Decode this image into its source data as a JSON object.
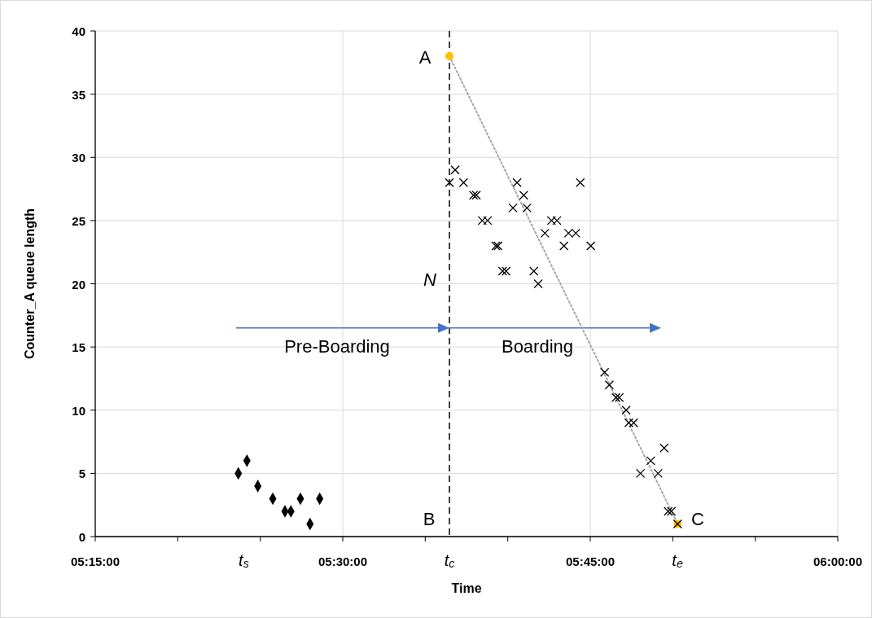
{
  "chart_data": {
    "type": "scatter",
    "xlabel": "Time",
    "ylabel": "Counter_A queue length",
    "xlim": [
      5.25,
      6.0
    ],
    "ylim": [
      0,
      40
    ],
    "xticks": [
      {
        "value": 5.25,
        "label": "05:15:00"
      },
      {
        "value": 5.3333,
        "label": null
      },
      {
        "value": 5.4,
        "label": "t$_{s}$"
      },
      {
        "value": 5.4167,
        "label": null
      },
      {
        "value": 5.5,
        "label": "05:30:00"
      },
      {
        "value": 5.5833,
        "label": null
      },
      {
        "value": 5.6077,
        "label": "t$_{c}$"
      },
      {
        "value": 5.6667,
        "label": null
      },
      {
        "value": 5.75,
        "label": "05:45:00"
      },
      {
        "value": 5.8333,
        "label": null
      },
      {
        "value": 5.838,
        "label": "t$_{e}$"
      },
      {
        "value": 5.9167,
        "label": null
      },
      {
        "value": 6.0,
        "label": "06:00:00"
      }
    ],
    "yticks": [
      0,
      5,
      10,
      15,
      20,
      25,
      30,
      35,
      40
    ],
    "grid": true,
    "ref_lines": [
      {
        "axis": "x",
        "value": 5.6077,
        "color": "#000000",
        "line_style": "dashed"
      }
    ],
    "annotations": [
      "A",
      "B",
      "C",
      "N",
      "Pre-Boarding",
      "Boarding"
    ],
    "series": [
      {
        "type": "line",
        "color": "#a6a6a6",
        "marker": "none",
        "line_style": "dotted",
        "x": [
          5.6077,
          5.8382
        ],
        "values": [
          38,
          1
        ]
      },
      {
        "color": "#ffc000",
        "marker": "circle",
        "x": [
          5.6077,
          5.8382
        ],
        "values": [
          38,
          1
        ]
      },
      {
        "color": "#000000",
        "marker": "diamond",
        "x": [
          5.3945,
          5.4032,
          5.4142,
          5.4293,
          5.4416,
          5.4476,
          5.4572,
          5.4669,
          5.4767
        ],
        "values": [
          5,
          6,
          4,
          3,
          2,
          2,
          3,
          1,
          3
        ]
      },
      {
        "color": "#000000",
        "marker": "cross",
        "x": [
          5.6077,
          5.6135,
          5.622,
          5.6321,
          5.6349,
          5.6409,
          5.6463,
          5.6546,
          5.6568,
          5.6614,
          5.665,
          5.6719,
          5.676,
          5.6828,
          5.6861,
          5.693,
          5.6974,
          5.7042,
          5.7108,
          5.7163,
          5.7234,
          5.728,
          5.7354,
          5.7399,
          5.7505,
          5.7645,
          5.7692,
          5.776,
          5.7793,
          5.7862,
          5.7889,
          5.7938,
          5.8007,
          5.8111,
          5.8185,
          5.8246,
          5.8287,
          5.8319,
          5.8382
        ],
        "values": [
          28,
          29,
          28,
          27,
          27,
          25,
          25,
          23,
          23,
          21,
          21,
          26,
          28,
          27,
          26,
          21,
          20,
          24,
          25,
          25,
          23,
          24,
          24,
          28,
          23,
          13,
          12,
          11,
          11,
          10,
          9,
          9,
          5,
          6,
          5,
          7,
          2,
          2,
          1
        ]
      }
    ]
  }
}
